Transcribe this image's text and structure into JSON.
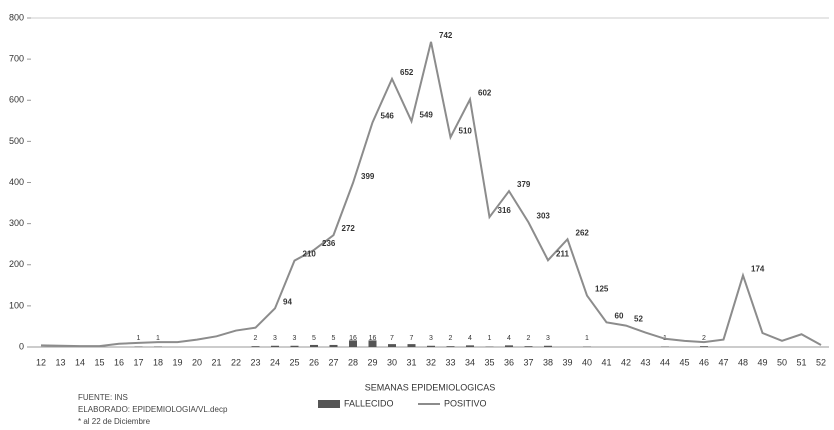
{
  "chart_data": {
    "type": "line",
    "x_label": "SEMANAS EPIDEMIOLOGICAS",
    "categories": [
      "12",
      "13",
      "14",
      "15",
      "16",
      "17",
      "18",
      "19",
      "20",
      "21",
      "22",
      "23",
      "24",
      "25",
      "26",
      "27",
      "28",
      "29",
      "30",
      "31",
      "32",
      "33",
      "34",
      "35",
      "36",
      "37",
      "38",
      "39",
      "40",
      "41",
      "42",
      "43",
      "44",
      "45",
      "46",
      "47",
      "48",
      "49",
      "50",
      "51",
      "52"
    ],
    "series": [
      {
        "name": "FALLECIDO",
        "color": "#555555",
        "kind": "bar",
        "values": [
          0,
          0,
          0,
          0,
          0,
          1,
          1,
          0,
          0,
          0,
          0,
          2,
          3,
          3,
          5,
          5,
          16,
          16,
          7,
          7,
          3,
          2,
          4,
          1,
          4,
          2,
          3,
          0,
          1,
          0,
          0,
          0,
          1,
          0,
          2,
          0,
          0,
          0,
          0,
          0,
          0
        ]
      },
      {
        "name": "POSITIVO",
        "color": "#8c8c8c",
        "kind": "line",
        "values": [
          4,
          3,
          2,
          2,
          8,
          10,
          12,
          12,
          18,
          26,
          40,
          47,
          94,
          210,
          236,
          272,
          399,
          546,
          652,
          549,
          742,
          510,
          602,
          316,
          379,
          303,
          211,
          262,
          125,
          60,
          52,
          35,
          20,
          15,
          12,
          18,
          174,
          34,
          15,
          31,
          5
        ]
      }
    ],
    "ylim": [
      0,
      800
    ],
    "yticks": [
      0,
      100,
      200,
      300,
      400,
      500,
      600,
      700,
      800
    ],
    "notes": [
      "FUENTE: INS",
      "ELABORADO: EPIDEMIOLOGIA/VL.decp",
      "* al 22 de Diciembre"
    ]
  }
}
